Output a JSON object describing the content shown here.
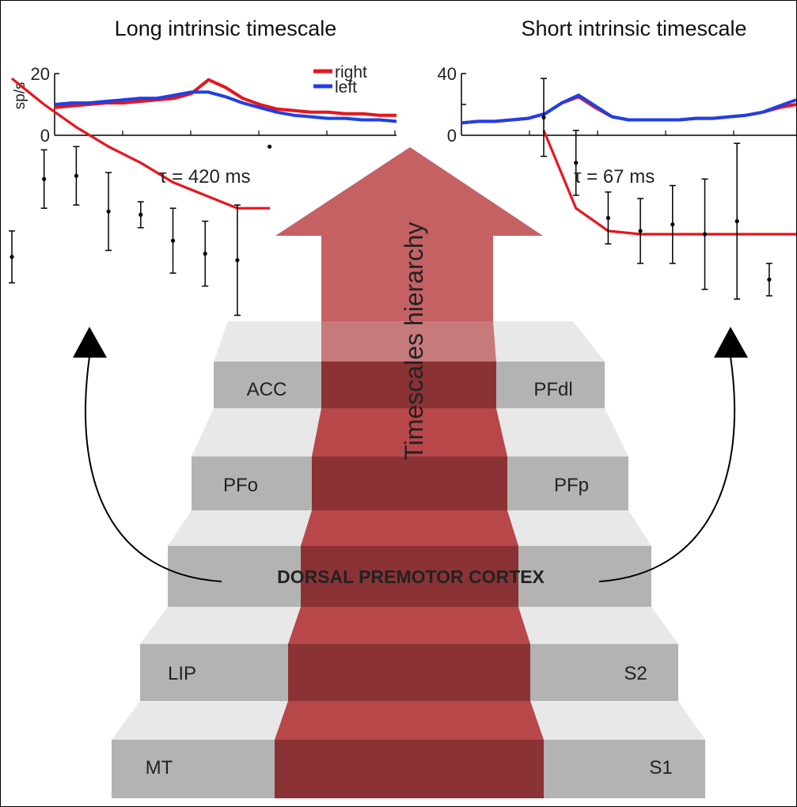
{
  "panels": {
    "left_title": "Long intrinsic timescale",
    "right_title": "Short intrinsic timescale",
    "y_unit": "sp/s",
    "legend": {
      "right": "right",
      "left": "left"
    },
    "colors": {
      "right": "#e8141c",
      "left": "#1f3fe8",
      "fit": "#e8141c"
    }
  },
  "fits": {
    "left_tau": "τ = 420 ms",
    "right_tau": "τ = 67 ms"
  },
  "hierarchy": {
    "arrow_label": "Timescales hierarchy",
    "arrow_color": "#b8383a",
    "carpet_color": "#b23a3c",
    "center_label": "DORSAL PREMOTOR CORTEX"
  },
  "stairs": [
    {
      "left": "ACC",
      "right": "PFdl"
    },
    {
      "left": "PFo",
      "right": "PFp"
    },
    {
      "left": "",
      "right": ""
    },
    {
      "left": "LIP",
      "right": "S2"
    },
    {
      "left": "MT",
      "right": "S1"
    }
  ],
  "chart_data": [
    {
      "type": "line",
      "title": "Long intrinsic timescale",
      "ylabel": "sp/s",
      "ylim": [
        0,
        20
      ],
      "yticks": [
        0,
        20
      ],
      "x": [
        0,
        1,
        2,
        3,
        4,
        5,
        6,
        7,
        8,
        9,
        10,
        11,
        12,
        13,
        14,
        15,
        16,
        17,
        18,
        19,
        20
      ],
      "series": [
        {
          "name": "right",
          "values": [
            9,
            9.5,
            10,
            10.5,
            10.5,
            11,
            11.5,
            12,
            13.5,
            18,
            15.5,
            12,
            10,
            8.5,
            8,
            7.5,
            7.5,
            7,
            7,
            6.5,
            6.5
          ]
        },
        {
          "name": "left",
          "values": [
            10,
            10.5,
            10.5,
            11,
            11.5,
            12,
            12,
            13,
            14,
            14,
            12.5,
            10.5,
            9,
            7.5,
            6.5,
            6,
            5.5,
            5.5,
            5,
            5,
            4.5
          ]
        }
      ]
    },
    {
      "type": "line",
      "title": "Short intrinsic timescale",
      "ylim": [
        0,
        40
      ],
      "yticks": [
        0,
        40
      ],
      "x": [
        0,
        1,
        2,
        3,
        4,
        5,
        6,
        7,
        8,
        9,
        10,
        11,
        12,
        13,
        14,
        15,
        16,
        17,
        18,
        19,
        20
      ],
      "series": [
        {
          "name": "right",
          "values": [
            8,
            9,
            9,
            10,
            11,
            14,
            21,
            25,
            18,
            12,
            10,
            10,
            10,
            10,
            11,
            11,
            12,
            13,
            15,
            18,
            20
          ]
        },
        {
          "name": "left",
          "values": [
            8,
            9,
            9,
            10,
            11,
            14,
            21,
            26,
            19,
            12,
            10,
            10,
            10,
            10,
            11,
            11,
            12,
            13,
            15,
            19,
            23
          ]
        }
      ]
    },
    {
      "type": "scatter",
      "ylim": [
        0,
        1
      ],
      "x": [
        0,
        1,
        2,
        3,
        4,
        5,
        6,
        7,
        8
      ],
      "values": [
        0.43,
        0.67,
        0.68,
        0.57,
        0.56,
        0.48,
        0.44,
        0.42,
        0.77
      ],
      "errors": [
        0.08,
        0.09,
        0.09,
        0.12,
        0.04,
        0.1,
        0.1,
        0.17,
        0
      ],
      "fit": {
        "tau": "420 ms",
        "values": [
          0.98,
          0.9,
          0.83,
          0.77,
          0.72,
          0.66,
          0.62,
          0.58
        ]
      }
    },
    {
      "type": "scatter",
      "ylim": [
        0,
        1
      ],
      "x": [
        0,
        1,
        2,
        3,
        4,
        5,
        6,
        7
      ],
      "values": [
        0.86,
        0.72,
        0.55,
        0.51,
        0.53,
        0.5,
        0.54,
        0.36
      ],
      "errors": [
        0.12,
        0.1,
        0.08,
        0.1,
        0.12,
        0.17,
        0.24,
        0.05
      ],
      "fit": {
        "tau": "67 ms",
        "values": [
          0.82,
          0.58,
          0.51,
          0.5,
          0.5,
          0.5,
          0.5,
          0.5
        ]
      }
    }
  ]
}
